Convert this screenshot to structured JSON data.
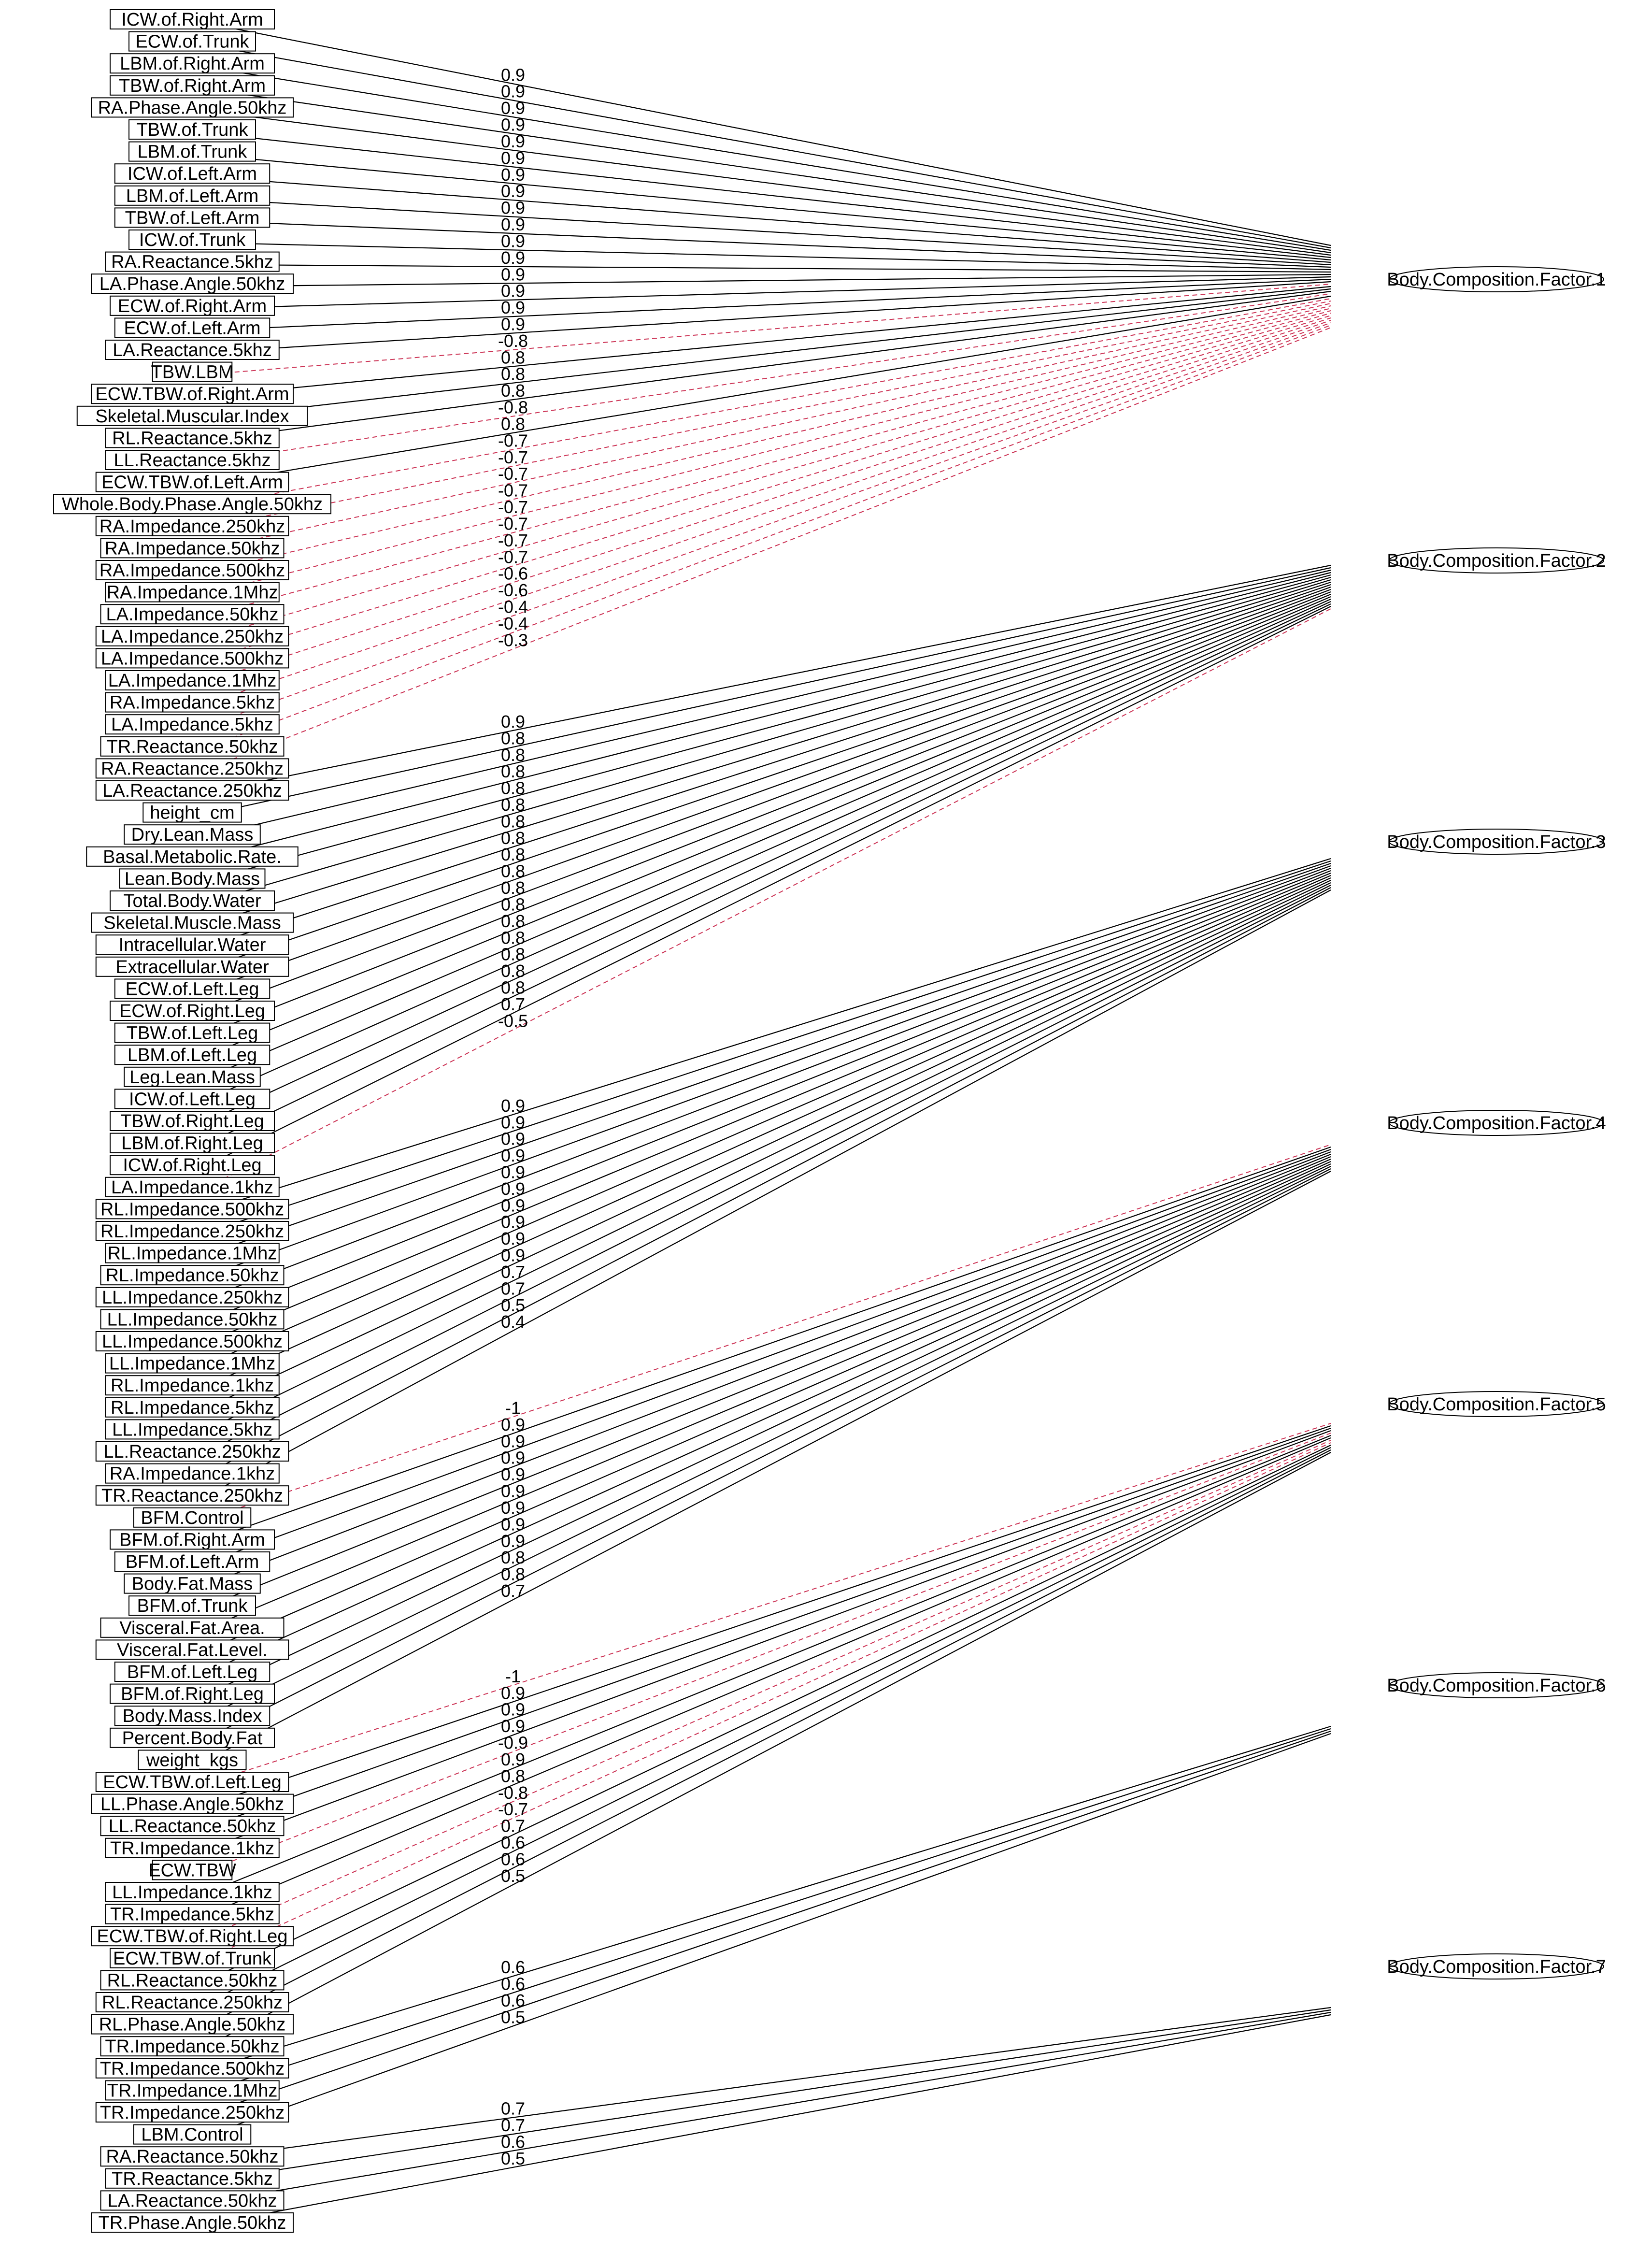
{
  "diagram": {
    "colors": {
      "positive_edge": "#000000",
      "negative_edge": "#cc3355",
      "text": "#000000",
      "box_stroke": "#000000"
    },
    "factors": [
      {
        "label": "Body.Composition.Factor.1",
        "loadings": [
          {
            "var": "ICW.of.Right.Arm",
            "value": "0.9"
          },
          {
            "var": "ECW.of.Trunk",
            "value": "0.9"
          },
          {
            "var": "LBM.of.Right.Arm",
            "value": "0.9"
          },
          {
            "var": "TBW.of.Right.Arm",
            "value": "0.9"
          },
          {
            "var": "RA.Phase.Angle.50khz",
            "value": "0.9"
          },
          {
            "var": "TBW.of.Trunk",
            "value": "0.9"
          },
          {
            "var": "LBM.of.Trunk",
            "value": "0.9"
          },
          {
            "var": "ICW.of.Left.Arm",
            "value": "0.9"
          },
          {
            "var": "LBM.of.Left.Arm",
            "value": "0.9"
          },
          {
            "var": "TBW.of.Left.Arm",
            "value": "0.9"
          },
          {
            "var": "ICW.of.Trunk",
            "value": "0.9"
          },
          {
            "var": "RA.Reactance.5khz",
            "value": "0.9"
          },
          {
            "var": "LA.Phase.Angle.50khz",
            "value": "0.9"
          },
          {
            "var": "ECW.of.Right.Arm",
            "value": "0.9"
          },
          {
            "var": "ECW.of.Left.Arm",
            "value": "0.9"
          },
          {
            "var": "LA.Reactance.5khz",
            "value": "0.9"
          },
          {
            "var": "TBW.LBM",
            "value": "-0.8"
          },
          {
            "var": "ECW.TBW.of.Right.Arm",
            "value": "0.8"
          },
          {
            "var": "Skeletal.Muscular.Index",
            "value": "0.8"
          },
          {
            "var": "RL.Reactance.5khz",
            "value": "0.8"
          },
          {
            "var": "LL.Reactance.5khz",
            "value": "-0.8"
          },
          {
            "var": "ECW.TBW.of.Left.Arm",
            "value": "0.8"
          },
          {
            "var": "Whole.Body.Phase.Angle.50khz",
            "value": "-0.7"
          },
          {
            "var": "RA.Impedance.250khz",
            "value": "-0.7"
          },
          {
            "var": "RA.Impedance.50khz",
            "value": "-0.7"
          },
          {
            "var": "RA.Impedance.500khz",
            "value": "-0.7"
          },
          {
            "var": "RA.Impedance.1Mhz",
            "value": "-0.7"
          },
          {
            "var": "LA.Impedance.50khz",
            "value": "-0.7"
          },
          {
            "var": "LA.Impedance.250khz",
            "value": "-0.7"
          },
          {
            "var": "LA.Impedance.500khz",
            "value": "-0.7"
          },
          {
            "var": "LA.Impedance.1Mhz",
            "value": "-0.6"
          },
          {
            "var": "RA.Impedance.5khz",
            "value": "-0.6"
          },
          {
            "var": "LA.Impedance.5khz",
            "value": "-0.4"
          },
          {
            "var": "TR.Reactance.50khz",
            "value": "-0.4"
          },
          {
            "var": "RA.Reactance.250khz",
            "value": "-0.3"
          }
        ]
      },
      {
        "label": "Body.Composition.Factor.2",
        "loadings": [
          {
            "var": "LA.Reactance.250khz",
            "value": "0.9"
          },
          {
            "var": "height_cm",
            "value": "0.8"
          },
          {
            "var": "Dry.Lean.Mass",
            "value": "0.8"
          },
          {
            "var": "Basal.Metabolic.Rate.",
            "value": "0.8"
          },
          {
            "var": "Lean.Body.Mass",
            "value": "0.8"
          },
          {
            "var": "Total.Body.Water",
            "value": "0.8"
          },
          {
            "var": "Skeletal.Muscle.Mass",
            "value": "0.8"
          },
          {
            "var": "Intracellular.Water",
            "value": "0.8"
          },
          {
            "var": "Extracellular.Water",
            "value": "0.8"
          },
          {
            "var": "ECW.of.Left.Leg",
            "value": "0.8"
          },
          {
            "var": "ECW.of.Right.Leg",
            "value": "0.8"
          },
          {
            "var": "TBW.of.Left.Leg",
            "value": "0.8"
          },
          {
            "var": "LBM.of.Left.Leg",
            "value": "0.8"
          },
          {
            "var": "Leg.Lean.Mass",
            "value": "0.8"
          },
          {
            "var": "ICW.of.Left.Leg",
            "value": "0.8"
          },
          {
            "var": "TBW.of.Right.Leg",
            "value": "0.8"
          },
          {
            "var": "LBM.of.Right.Leg",
            "value": "0.8"
          },
          {
            "var": "ICW.of.Right.Leg",
            "value": "0.7"
          },
          {
            "var": "LA.Impedance.1khz",
            "value": "-0.5"
          }
        ]
      },
      {
        "label": "Body.Composition.Factor.3",
        "loadings": [
          {
            "var": "RL.Impedance.500khz",
            "value": "0.9"
          },
          {
            "var": "RL.Impedance.250khz",
            "value": "0.9"
          },
          {
            "var": "RL.Impedance.1Mhz",
            "value": "0.9"
          },
          {
            "var": "RL.Impedance.50khz",
            "value": "0.9"
          },
          {
            "var": "LL.Impedance.250khz",
            "value": "0.9"
          },
          {
            "var": "LL.Impedance.50khz",
            "value": "0.9"
          },
          {
            "var": "LL.Impedance.500khz",
            "value": "0.9"
          },
          {
            "var": "LL.Impedance.1Mhz",
            "value": "0.9"
          },
          {
            "var": "RL.Impedance.1khz",
            "value": "0.9"
          },
          {
            "var": "RL.Impedance.5khz",
            "value": "0.9"
          },
          {
            "var": "LL.Impedance.5khz",
            "value": "0.7"
          },
          {
            "var": "LL.Reactance.250khz",
            "value": "0.7"
          },
          {
            "var": "RA.Impedance.1khz",
            "value": "0.5"
          },
          {
            "var": "TR.Reactance.250khz",
            "value": "0.4"
          }
        ]
      },
      {
        "label": "Body.Composition.Factor.4",
        "loadings": [
          {
            "var": "BFM.Control",
            "value": "-1"
          },
          {
            "var": "BFM.of.Right.Arm",
            "value": "0.9"
          },
          {
            "var": "BFM.of.Left.Arm",
            "value": "0.9"
          },
          {
            "var": "Body.Fat.Mass",
            "value": "0.9"
          },
          {
            "var": "BFM.of.Trunk",
            "value": "0.9"
          },
          {
            "var": "Visceral.Fat.Area.",
            "value": "0.9"
          },
          {
            "var": "Visceral.Fat.Level.",
            "value": "0.9"
          },
          {
            "var": "BFM.of.Left.Leg",
            "value": "0.9"
          },
          {
            "var": "BFM.of.Right.Leg",
            "value": "0.9"
          },
          {
            "var": "Body.Mass.Index",
            "value": "0.8"
          },
          {
            "var": "Percent.Body.Fat",
            "value": "0.8"
          },
          {
            "var": "weight_kgs",
            "value": "0.7"
          }
        ]
      },
      {
        "label": "Body.Composition.Factor.5",
        "loadings": [
          {
            "var": "ECW.TBW.of.Left.Leg",
            "value": "-1"
          },
          {
            "var": "LL.Phase.Angle.50khz",
            "value": "0.9"
          },
          {
            "var": "LL.Reactance.50khz",
            "value": "0.9"
          },
          {
            "var": "TR.Impedance.1khz",
            "value": "0.9"
          },
          {
            "var": "ECW.TBW",
            "value": "-0.9"
          },
          {
            "var": "LL.Impedance.1khz",
            "value": "0.9"
          },
          {
            "var": "TR.Impedance.5khz",
            "value": "0.8"
          },
          {
            "var": "ECW.TBW.of.Right.Leg",
            "value": "-0.8"
          },
          {
            "var": "ECW.TBW.of.Trunk",
            "value": "-0.7"
          },
          {
            "var": "RL.Reactance.50khz",
            "value": "0.7"
          },
          {
            "var": "RL.Reactance.250khz",
            "value": "0.6"
          },
          {
            "var": "RL.Phase.Angle.50khz",
            "value": "0.6"
          },
          {
            "var": "TR.Impedance.50khz",
            "value": "0.5"
          }
        ]
      },
      {
        "label": "Body.Composition.Factor.6",
        "loadings": [
          {
            "var": "TR.Impedance.500khz",
            "value": "0.6"
          },
          {
            "var": "TR.Impedance.1Mhz",
            "value": "0.6"
          },
          {
            "var": "TR.Impedance.250khz",
            "value": "0.6"
          },
          {
            "var": "LBM.Control",
            "value": "0.5"
          }
        ]
      },
      {
        "label": "Body.Composition.Factor.7",
        "loadings": [
          {
            "var": "RA.Reactance.50khz",
            "value": "0.7"
          },
          {
            "var": "TR.Reactance.5khz",
            "value": "0.7"
          },
          {
            "var": "LA.Reactance.50khz",
            "value": "0.6"
          },
          {
            "var": "TR.Phase.Angle.50khz",
            "value": "0.5"
          }
        ]
      }
    ]
  }
}
